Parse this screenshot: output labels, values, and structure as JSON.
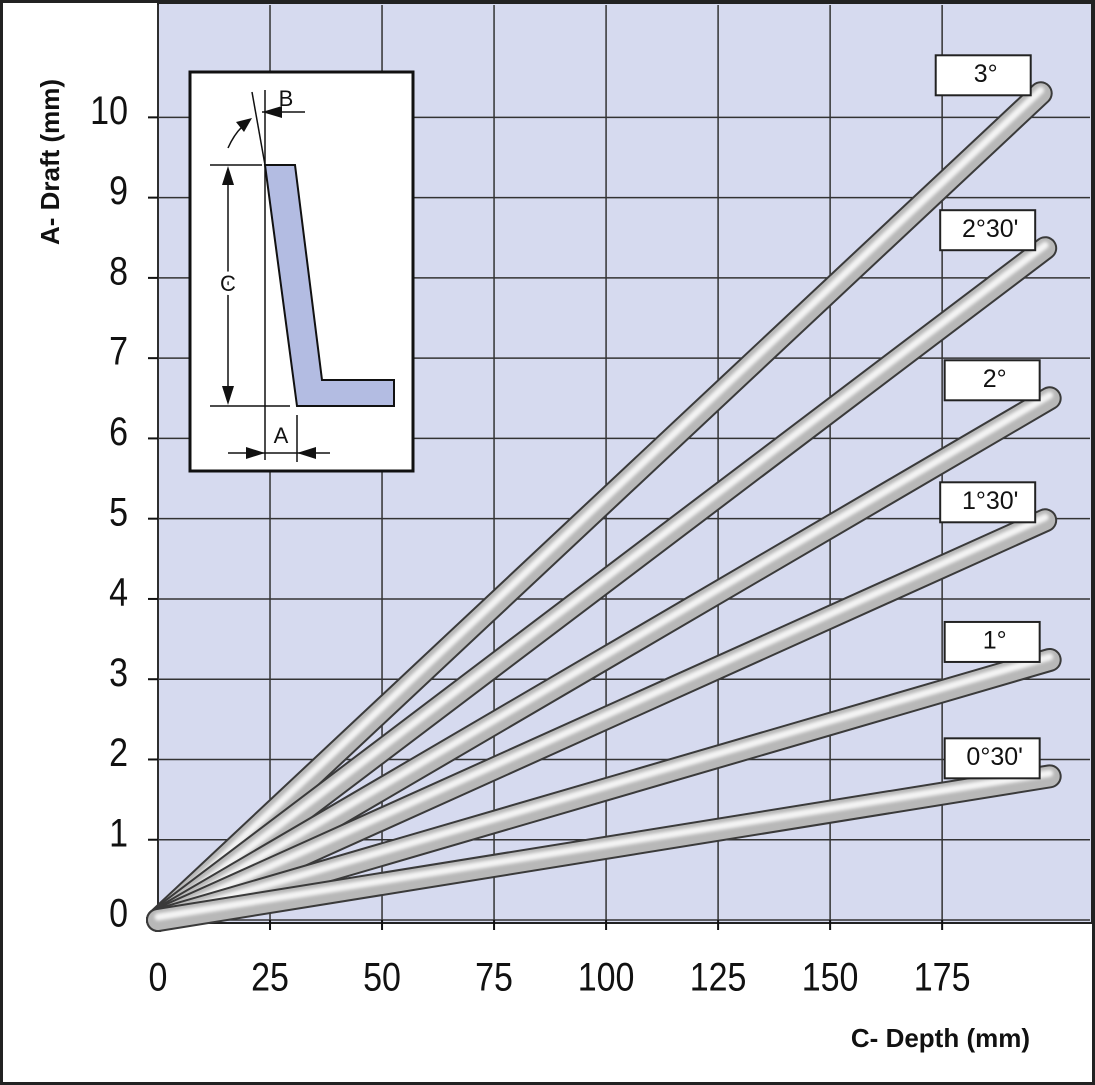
{
  "chart_data": {
    "type": "line",
    "x_label": "C- Depth (mm)",
    "y_label": "A- Draft (mm)",
    "xlim": [
      0,
      208
    ],
    "ylim": [
      0,
      11.4
    ],
    "xticks": [
      0,
      25,
      50,
      75,
      100,
      125,
      150,
      175
    ],
    "yticks": [
      0,
      1,
      2,
      3,
      4,
      5,
      6,
      7,
      8,
      9,
      10
    ],
    "grid": true,
    "series": [
      {
        "name": "3°",
        "color": "#b8b8b8",
        "x": [
          0,
          197
        ],
        "values": [
          0,
          10.3
        ]
      },
      {
        "name": "2°30'",
        "color": "#b8b8b8",
        "x": [
          0,
          198
        ],
        "values": [
          0,
          8.37
        ]
      },
      {
        "name": "2°",
        "color": "#b8b8b8",
        "x": [
          0,
          199
        ],
        "values": [
          0,
          6.5
        ]
      },
      {
        "name": "1°30'",
        "color": "#b8b8b8",
        "x": [
          0,
          198
        ],
        "values": [
          0,
          4.98
        ]
      },
      {
        "name": "1°",
        "color": "#b8b8b8",
        "x": [
          0,
          199
        ],
        "values": [
          0,
          3.24
        ]
      },
      {
        "name": "0°30'",
        "color": "#b8b8b8",
        "x": [
          0,
          199
        ],
        "values": [
          0,
          1.79
        ]
      }
    ]
  },
  "inset": {
    "label_b": "B",
    "label_c": "C",
    "label_a": "A"
  }
}
